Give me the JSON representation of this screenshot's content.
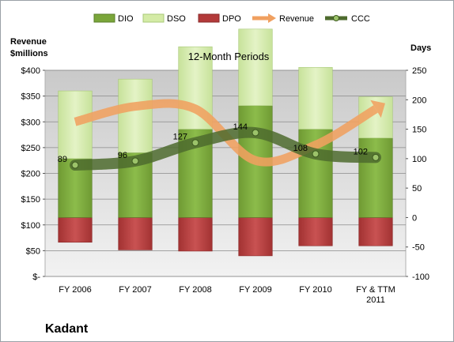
{
  "chart_data": {
    "type": "bar",
    "title": "12-Month Periods",
    "company": "Kadant",
    "left_axis_label_line1": "Revenue",
    "left_axis_label_line2": "$millions",
    "right_axis_label": "Days",
    "categories": [
      [
        "FY 2006"
      ],
      [
        "FY 2007"
      ],
      [
        "FY 2008"
      ],
      [
        "FY 2009"
      ],
      [
        "FY 2010"
      ],
      [
        "FY & TTM",
        "2011"
      ]
    ],
    "left_axis": {
      "min": 0,
      "max": 400,
      "ticks": [
        0,
        50,
        100,
        150,
        200,
        250,
        300,
        350,
        400
      ],
      "tick_labels": [
        "$-",
        "$50",
        "$100",
        "$150",
        "$200",
        "$250",
        "$300",
        "$350",
        "$400"
      ]
    },
    "right_axis": {
      "min": -100,
      "max": 250,
      "ticks": [
        -100,
        -50,
        0,
        50,
        100,
        150,
        200,
        250
      ],
      "tick_labels": [
        "-100",
        "-50",
        "0",
        "50",
        "100",
        "150",
        "200",
        "250"
      ]
    },
    "legend": [
      "DIO",
      "DSO",
      "DPO",
      "Revenue",
      "CCC"
    ],
    "series": [
      {
        "name": "DIO",
        "unit": "days",
        "values": [
          100,
          110,
          150,
          190,
          150,
          135
        ],
        "color": "#7aa63a"
      },
      {
        "name": "DSO",
        "unit": "days",
        "values": [
          115,
          125,
          140,
          130,
          105,
          70
        ],
        "color": "#d4eba6"
      },
      {
        "name": "DPO",
        "unit": "days",
        "values": [
          -42,
          -55,
          -57,
          -65,
          -48,
          -48
        ],
        "color": "#b33a3a"
      },
      {
        "name": "Revenue",
        "unit": "$ millions",
        "values": [
          300,
          330,
          325,
          225,
          255,
          325
        ],
        "color": "#f0a060"
      },
      {
        "name": "CCC",
        "unit": "days",
        "values": [
          89,
          96,
          127,
          144,
          108,
          102
        ],
        "labels": [
          "89",
          "96",
          "127",
          "144",
          "108",
          "102"
        ],
        "color": "#4e6b2e"
      }
    ],
    "grid": true,
    "legend_position": "top"
  }
}
